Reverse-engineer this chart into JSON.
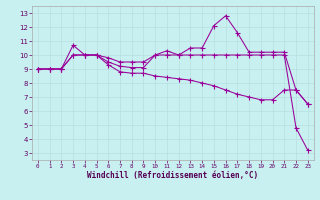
{
  "xlabel": "Windchill (Refroidissement éolien,°C)",
  "background_color": "#c8f0f0",
  "line_color": "#990099",
  "grid_color": "#b8e0e0",
  "xlim": [
    -0.5,
    23.5
  ],
  "ylim": [
    2.5,
    13.5
  ],
  "xticks": [
    0,
    1,
    2,
    3,
    4,
    5,
    6,
    7,
    8,
    9,
    10,
    11,
    12,
    13,
    14,
    15,
    16,
    17,
    18,
    19,
    20,
    21,
    22,
    23
  ],
  "yticks": [
    3,
    4,
    5,
    6,
    7,
    8,
    9,
    10,
    11,
    12,
    13
  ],
  "series1_x": [
    0,
    1,
    2,
    3,
    4,
    5,
    6,
    7,
    8,
    9,
    10,
    11,
    12,
    13,
    14,
    15,
    16,
    17,
    18,
    19,
    20,
    21,
    22,
    23
  ],
  "series1_y": [
    9.0,
    9.0,
    9.0,
    10.0,
    10.0,
    10.0,
    9.3,
    8.8,
    8.7,
    8.7,
    8.5,
    8.4,
    8.3,
    8.2,
    8.0,
    7.8,
    7.5,
    7.2,
    7.0,
    6.8,
    6.8,
    7.5,
    7.5,
    6.5
  ],
  "series2_x": [
    0,
    1,
    2,
    3,
    4,
    5,
    6,
    7,
    8,
    9,
    10,
    11,
    12,
    13,
    14,
    15,
    16,
    17,
    18,
    19,
    20,
    21,
    22,
    23
  ],
  "series2_y": [
    9.0,
    9.0,
    9.0,
    10.7,
    10.0,
    10.0,
    9.5,
    9.2,
    9.1,
    9.1,
    10.0,
    10.3,
    10.0,
    10.5,
    10.5,
    12.1,
    12.8,
    11.6,
    10.2,
    10.2,
    10.2,
    10.2,
    7.5,
    6.5
  ],
  "series3_x": [
    0,
    1,
    2,
    3,
    4,
    5,
    6,
    7,
    8,
    9,
    10,
    11,
    12,
    13,
    14,
    15,
    16,
    17,
    18,
    19,
    20,
    21,
    22,
    23
  ],
  "series3_y": [
    9.0,
    9.0,
    9.0,
    10.0,
    10.0,
    10.0,
    9.8,
    9.5,
    9.5,
    9.5,
    10.0,
    10.0,
    10.0,
    10.0,
    10.0,
    10.0,
    10.0,
    10.0,
    10.0,
    10.0,
    10.0,
    10.0,
    4.8,
    3.2
  ]
}
